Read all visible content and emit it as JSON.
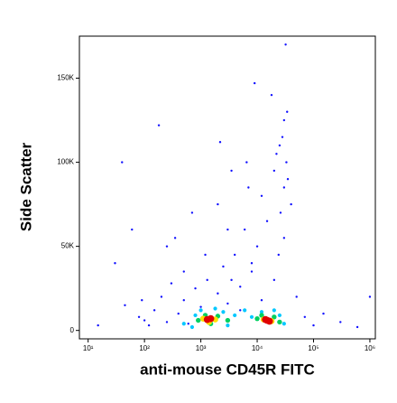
{
  "chart_data": {
    "type": "scatter",
    "x_label": "anti-mouse CD45R FITC",
    "y_label": "Side Scatter",
    "xscale": "log",
    "xlim": [
      7,
      1250000
    ],
    "ylim": [
      -5000,
      175000
    ],
    "xticks": [
      {
        "value": 10,
        "label": "10¹"
      },
      {
        "value": 100,
        "label": "10²"
      },
      {
        "value": 1000,
        "label": "10³"
      },
      {
        "value": 10000,
        "label": "10⁴"
      },
      {
        "value": 100000,
        "label": "10⁵"
      },
      {
        "value": 1000000,
        "label": "10⁶"
      }
    ],
    "yticks": [
      0,
      {
        "value": 50000,
        "label": "50K"
      },
      {
        "value": 100000,
        "label": "100K"
      },
      {
        "value": 150000,
        "label": "150K"
      }
    ],
    "series": [
      {
        "color": "#1010ff",
        "x": [
          15,
          30,
          45,
          80,
          120,
          150,
          200,
          250,
          300,
          400,
          500,
          600,
          800,
          1000,
          1300,
          2000,
          2500,
          3000,
          4000,
          5000,
          6000,
          8000,
          10000,
          12000,
          15000,
          20000,
          25000,
          30000,
          35000,
          40000,
          50000,
          70000,
          100000,
          150000,
          300000,
          600000,
          1000000,
          40,
          60,
          180,
          350,
          700,
          2200,
          3500,
          7000,
          9000,
          18000,
          22000,
          28000,
          32000,
          26000,
          30000,
          24000,
          34000,
          20000,
          12000,
          5000,
          8000,
          6500,
          3000,
          1200,
          2000,
          3500,
          500,
          100,
          90,
          250,
          30000,
          33000
        ],
        "values": [
          3000,
          40000,
          15000,
          8000,
          3000,
          12000,
          20000,
          5000,
          28000,
          10000,
          18000,
          4000,
          25000,
          14000,
          30000,
          22000,
          38000,
          16000,
          45000,
          26000,
          60000,
          35000,
          50000,
          80000,
          65000,
          95000,
          110000,
          125000,
          90000,
          75000,
          20000,
          8000,
          3000,
          10000,
          5000,
          2000,
          20000,
          100000,
          60000,
          122000,
          55000,
          70000,
          112000,
          95000,
          85000,
          147000,
          140000,
          105000,
          115000,
          170000,
          70000,
          55000,
          45000,
          130000,
          30000,
          18000,
          12000,
          40000,
          100000,
          60000,
          45000,
          75000,
          30000,
          35000,
          6000,
          18000,
          50000,
          85000,
          100000
        ]
      },
      {
        "color": "#00c8ff",
        "x": [
          500,
          800,
          1000,
          1800,
          2500,
          4000,
          6000,
          8000,
          12000,
          20000,
          25000,
          3000,
          700,
          30000
        ],
        "values": [
          4000,
          9000,
          12000,
          13000,
          11000,
          9000,
          12000,
          8000,
          11000,
          12000,
          9000,
          3000,
          2000,
          4000
        ]
      },
      {
        "color": "#00d060",
        "x": [
          900,
          1200,
          2000,
          3000,
          10000,
          12000,
          20000,
          25000,
          1500
        ],
        "values": [
          6000,
          9000,
          8500,
          6000,
          7000,
          9000,
          8000,
          5000,
          4000
        ]
      },
      {
        "color": "#ffe000",
        "x": [
          1100,
          1800,
          13000,
          18000,
          1400
        ],
        "values": [
          7000,
          6500,
          6500,
          5500,
          5000
        ]
      },
      {
        "color": "#e00000",
        "x": [
          1500,
          1300,
          15000,
          16500,
          14000
        ],
        "values": [
          7000,
          6500,
          6000,
          5500,
          6500
        ]
      }
    ]
  }
}
